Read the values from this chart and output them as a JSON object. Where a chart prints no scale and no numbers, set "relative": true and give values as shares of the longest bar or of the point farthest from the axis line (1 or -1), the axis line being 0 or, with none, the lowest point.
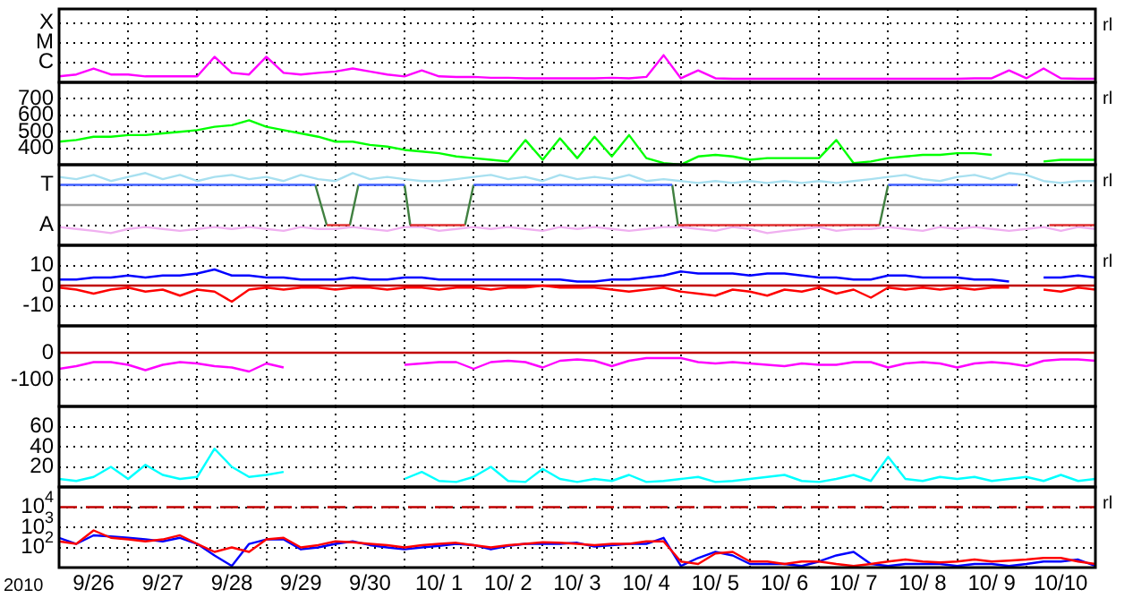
{
  "chart_data": [
    {
      "type": "line",
      "relative": true,
      "grid": true,
      "tick_labels": "y",
      "xlim": [
        "2010-09-26T00:00",
        "2010-10-11T00:00"
      ],
      "xticks": [
        {
          "value": "2010-09-27T00:00",
          "label": null
        },
        {
          "value": "2010-09-28T00:00",
          "label": null
        },
        {
          "value": "2010-09-29T00:00",
          "label": null
        },
        {
          "value": "2010-09-30T00:00",
          "label": null
        },
        {
          "value": "2010-10-01T00:00",
          "label": null
        },
        {
          "value": "2010-10-02T00:00",
          "label": null
        },
        {
          "value": "2010-10-03T00:00",
          "label": null
        },
        {
          "value": "2010-10-04T00:00",
          "label": null
        },
        {
          "value": "2010-10-05T00:00",
          "label": null
        },
        {
          "value": "2010-10-06T00:00",
          "label": null
        },
        {
          "value": "2010-10-07T00:00",
          "label": null
        },
        {
          "value": "2010-10-08T00:00",
          "label": null
        },
        {
          "value": "2010-10-09T00:00",
          "label": null
        },
        {
          "value": "2010-10-10T00:00",
          "label": null
        }
      ],
      "annotations": [
        "rl",
        "X",
        "M",
        "C"
      ],
      "x": [
        "2010-09-26T00:00",
        "2010-09-26T06:00",
        "2010-09-26T12:00",
        "2010-09-26T18:00",
        "2010-09-27T00:00",
        "2010-09-27T06:00",
        "2010-09-27T12:00",
        "2010-09-27T18:00",
        "2010-09-28T00:00",
        "2010-09-28T06:00",
        "2010-09-28T12:00",
        "2010-09-28T18:00",
        "2010-09-29T00:00",
        "2010-09-29T06:00",
        "2010-09-29T12:00",
        "2010-09-29T18:00",
        "2010-09-30T00:00",
        "2010-09-30T06:00",
        "2010-09-30T12:00",
        "2010-09-30T18:00",
        "2010-10-01T00:00",
        "2010-10-01T06:00",
        "2010-10-01T12:00",
        "2010-10-01T18:00",
        "2010-10-02T00:00",
        "2010-10-02T06:00",
        "2010-10-02T12:00",
        "2010-10-02T18:00",
        "2010-10-03T00:00",
        "2010-10-03T06:00",
        "2010-10-03T12:00",
        "2010-10-03T18:00",
        "2010-10-04T00:00",
        "2010-10-04T06:00",
        "2010-10-04T12:00",
        "2010-10-04T18:00",
        "2010-10-05T00:00",
        "2010-10-05T06:00",
        "2010-10-05T12:00",
        "2010-10-05T18:00",
        "2010-10-06T00:00",
        "2010-10-06T06:00",
        "2010-10-06T12:00",
        "2010-10-06T18:00",
        "2010-10-07T00:00",
        "2010-10-07T06:00",
        "2010-10-07T12:00",
        "2010-10-07T18:00",
        "2010-10-08T00:00",
        "2010-10-08T06:00",
        "2010-10-08T12:00",
        "2010-10-08T18:00",
        "2010-10-09T00:00",
        "2010-10-09T06:00",
        "2010-10-09T12:00",
        "2010-10-09T18:00",
        "2010-10-10T00:00",
        "2010-10-10T06:00",
        "2010-10-10T12:00",
        "2010-10-10T18:00",
        "2010-10-11T00:00"
      ],
      "series": [
        {
          "color": "#ff00ff",
          "values": [
            0.22,
            0.29,
            0.51,
            0.29,
            0.29,
            0.22,
            0.22,
            0.22,
            0.22,
            0.94,
            0.35,
            0.29,
            0.94,
            0.35,
            0.29,
            0.35,
            0.4,
            0.51,
            0.4,
            0.29,
            0.22,
            0.44,
            0.22,
            0.2,
            0.2,
            0.17,
            0.17,
            0.15,
            0.15,
            0.15,
            0.15,
            0.15,
            0.17,
            0.15,
            0.2,
            1,
            0.15,
            0.44,
            0.15,
            0.13,
            0.13,
            0.13,
            0.13,
            0.13,
            0.13,
            0.13,
            0.13,
            0.13,
            0.13,
            0.13,
            0.13,
            0.13,
            0.13,
            0.15,
            0.15,
            0.44,
            0.15,
            0.51,
            0.15,
            0.13,
            0.13
          ]
        }
      ]
    },
    {
      "type": "line",
      "grid": true,
      "tick_labels": "y",
      "xlim": [
        "2010-09-26T00:00",
        "2010-10-11T00:00"
      ],
      "ylim": [
        300,
        800
      ],
      "yticks": [
        400,
        500,
        600,
        700
      ],
      "xticks": [
        {
          "value": "2010-09-27T00:00",
          "label": null
        },
        {
          "value": "2010-09-28T00:00",
          "label": null
        },
        {
          "value": "2010-09-29T00:00",
          "label": null
        },
        {
          "value": "2010-09-30T00:00",
          "label": null
        },
        {
          "value": "2010-10-01T00:00",
          "label": null
        },
        {
          "value": "2010-10-02T00:00",
          "label": null
        },
        {
          "value": "2010-10-03T00:00",
          "label": null
        },
        {
          "value": "2010-10-04T00:00",
          "label": null
        },
        {
          "value": "2010-10-05T00:00",
          "label": null
        },
        {
          "value": "2010-10-06T00:00",
          "label": null
        },
        {
          "value": "2010-10-07T00:00",
          "label": null
        },
        {
          "value": "2010-10-08T00:00",
          "label": null
        },
        {
          "value": "2010-10-09T00:00",
          "label": null
        },
        {
          "value": "2010-10-10T00:00",
          "label": null
        }
      ],
      "annotations": [
        "rl"
      ],
      "x": [
        "2010-09-26T00:00",
        "2010-09-26T06:00",
        "2010-09-26T12:00",
        "2010-09-26T18:00",
        "2010-09-27T00:00",
        "2010-09-27T06:00",
        "2010-09-27T12:00",
        "2010-09-27T18:00",
        "2010-09-28T00:00",
        "2010-09-28T06:00",
        "2010-09-28T12:00",
        "2010-09-28T18:00",
        "2010-09-29T00:00",
        "2010-09-29T06:00",
        "2010-09-29T12:00",
        "2010-09-29T18:00",
        "2010-09-30T00:00",
        "2010-09-30T06:00",
        "2010-09-30T12:00",
        "2010-09-30T18:00",
        "2010-10-01T00:00",
        "2010-10-01T06:00",
        "2010-10-01T12:00",
        "2010-10-01T18:00",
        "2010-10-02T00:00",
        "2010-10-02T06:00",
        "2010-10-02T12:00",
        "2010-10-02T18:00",
        "2010-10-03T00:00",
        "2010-10-03T06:00",
        "2010-10-03T12:00",
        "2010-10-03T18:00",
        "2010-10-04T00:00",
        "2010-10-04T06:00",
        "2010-10-04T12:00",
        "2010-10-04T18:00",
        "2010-10-05T00:00",
        "2010-10-05T06:00",
        "2010-10-05T12:00",
        "2010-10-05T18:00",
        "2010-10-06T00:00",
        "2010-10-06T06:00",
        "2010-10-06T12:00",
        "2010-10-06T18:00",
        "2010-10-07T00:00",
        "2010-10-07T06:00",
        "2010-10-07T12:00",
        "2010-10-07T18:00",
        "2010-10-08T00:00",
        "2010-10-08T06:00",
        "2010-10-08T12:00",
        "2010-10-08T18:00",
        "2010-10-09T00:00",
        "2010-10-09T06:00",
        "2010-10-09T12:00",
        "2010-10-09T18:00",
        "2010-10-10T00:00",
        "2010-10-10T06:00",
        "2010-10-10T12:00",
        "2010-10-10T18:00",
        "2010-10-11T00:00"
      ],
      "series": [
        {
          "color": "#00ff00",
          "values": [
            440,
            450,
            470,
            470,
            480,
            480,
            490,
            500,
            510,
            530,
            540,
            570,
            530,
            510,
            490,
            470,
            440,
            440,
            420,
            410,
            390,
            380,
            370,
            350,
            340,
            330,
            320,
            450,
            330,
            460,
            340,
            470,
            350,
            480,
            340,
            310,
            300,
            350,
            360,
            350,
            330,
            340,
            340,
            340,
            340,
            450,
            310,
            320,
            340,
            350,
            360,
            360,
            370,
            370,
            360,
            null,
            null,
            320,
            330,
            330,
            330
          ]
        }
      ]
    },
    {
      "type": "line",
      "relative": true,
      "grid": true,
      "tick_labels": "y",
      "xlim": [
        "2010-09-26T00:00",
        "2010-10-11T00:00"
      ],
      "xticks": [
        {
          "value": "2010-09-27T00:00",
          "label": null
        },
        {
          "value": "2010-09-28T00:00",
          "label": null
        },
        {
          "value": "2010-09-29T00:00",
          "label": null
        },
        {
          "value": "2010-09-30T00:00",
          "label": null
        },
        {
          "value": "2010-10-01T00:00",
          "label": null
        },
        {
          "value": "2010-10-02T00:00",
          "label": null
        },
        {
          "value": "2010-10-03T00:00",
          "label": null
        },
        {
          "value": "2010-10-04T00:00",
          "label": null
        },
        {
          "value": "2010-10-05T00:00",
          "label": null
        },
        {
          "value": "2010-10-06T00:00",
          "label": null
        },
        {
          "value": "2010-10-07T00:00",
          "label": null
        },
        {
          "value": "2010-10-08T00:00",
          "label": null
        },
        {
          "value": "2010-10-09T00:00",
          "label": null
        },
        {
          "value": "2010-10-10T00:00",
          "label": null
        }
      ],
      "annotations": [
        "rl",
        "T",
        "A"
      ],
      "ref_lines": [
        {
          "axis": "y",
          "value": 0,
          "color": "#a0a0a0"
        }
      ],
      "x": [
        "2010-09-26T00:00",
        "2010-09-26T06:00",
        "2010-09-26T12:00",
        "2010-09-26T18:00",
        "2010-09-27T00:00",
        "2010-09-27T06:00",
        "2010-09-27T12:00",
        "2010-09-27T18:00",
        "2010-09-28T00:00",
        "2010-09-28T06:00",
        "2010-09-28T12:00",
        "2010-09-28T18:00",
        "2010-09-29T00:00",
        "2010-09-29T06:00",
        "2010-09-29T12:00",
        "2010-09-29T18:00",
        "2010-09-30T00:00",
        "2010-09-30T06:00",
        "2010-09-30T12:00",
        "2010-09-30T18:00",
        "2010-10-01T00:00",
        "2010-10-01T06:00",
        "2010-10-01T12:00",
        "2010-10-01T18:00",
        "2010-10-02T00:00",
        "2010-10-02T06:00",
        "2010-10-02T12:00",
        "2010-10-02T18:00",
        "2010-10-03T00:00",
        "2010-10-03T06:00",
        "2010-10-03T12:00",
        "2010-10-03T18:00",
        "2010-10-04T00:00",
        "2010-10-04T06:00",
        "2010-10-04T12:00",
        "2010-10-04T18:00",
        "2010-10-05T00:00",
        "2010-10-05T06:00",
        "2010-10-05T12:00",
        "2010-10-05T18:00",
        "2010-10-06T00:00",
        "2010-10-06T06:00",
        "2010-10-06T12:00",
        "2010-10-06T18:00",
        "2010-10-07T00:00",
        "2010-10-07T06:00",
        "2010-10-07T12:00",
        "2010-10-07T18:00",
        "2010-10-08T00:00",
        "2010-10-08T06:00",
        "2010-10-08T12:00",
        "2010-10-08T18:00",
        "2010-10-09T00:00",
        "2010-10-09T06:00",
        "2010-10-09T12:00",
        "2010-10-09T18:00",
        "2010-10-10T00:00",
        "2010-10-10T06:00",
        "2010-10-10T12:00",
        "2010-10-10T18:00",
        "2010-10-11T00:00"
      ],
      "series": [
        {
          "color": "#4060ff",
          "x": [
            "2010-09-26T00:00",
            "2010-09-29T17:00"
          ],
          "values": [
            0.63,
            0.63
          ]
        },
        {
          "color": "#4060ff",
          "x": [
            "2010-09-30T08:00",
            "2010-10-01T00:00"
          ],
          "values": [
            0.63,
            0.63
          ]
        },
        {
          "color": "#4060ff",
          "x": [
            "2010-10-02T00:00",
            "2010-10-04T21:00"
          ],
          "values": [
            0.63,
            0.63
          ]
        },
        {
          "color": "#4060ff",
          "x": [
            "2010-10-08T00:00",
            "2010-10-09T21:00"
          ],
          "values": [
            0.63,
            0.63
          ]
        },
        {
          "color": "#e03030",
          "x": [
            "2010-09-29T21:00",
            "2010-09-30T05:00"
          ],
          "values": [
            -0.63,
            -0.63
          ]
        },
        {
          "color": "#e03030",
          "x": [
            "2010-10-01T02:00",
            "2010-10-01T21:00"
          ],
          "values": [
            -0.63,
            -0.63
          ]
        },
        {
          "color": "#e03030",
          "x": [
            "2010-10-04T23:00",
            "2010-10-07T21:00"
          ],
          "values": [
            -0.63,
            -0.63
          ]
        },
        {
          "color": "#e03030",
          "x": [
            "2010-10-10T08:00",
            "2010-10-11T00:00"
          ],
          "values": [
            -0.63,
            -0.63
          ]
        },
        {
          "color": "#408040",
          "x": [
            "2010-09-29T17:00",
            "2010-09-29T21:00"
          ],
          "values": [
            0.63,
            -0.63
          ]
        },
        {
          "color": "#408040",
          "x": [
            "2010-09-30T05:00",
            "2010-09-30T08:00"
          ],
          "values": [
            -0.63,
            0.63
          ]
        },
        {
          "color": "#408040",
          "x": [
            "2010-10-01T00:00",
            "2010-10-01T02:00"
          ],
          "values": [
            0.63,
            -0.63
          ]
        },
        {
          "color": "#408040",
          "x": [
            "2010-10-01T21:00",
            "2010-10-02T00:00"
          ],
          "values": [
            -0.63,
            0.63
          ]
        },
        {
          "color": "#408040",
          "x": [
            "2010-10-04T21:00",
            "2010-10-04T23:00"
          ],
          "values": [
            0.63,
            -0.63
          ]
        },
        {
          "color": "#408040",
          "x": [
            "2010-10-07T21:00",
            "2010-10-08T00:00"
          ],
          "values": [
            -0.63,
            0.63
          ]
        },
        {
          "color": "#a8e0f0",
          "values": [
            0.88,
            0.81,
            0.94,
            0.75,
            0.88,
            1,
            0.81,
            0.94,
            0.75,
            0.88,
            0.94,
            0.81,
            0.88,
            0.75,
            0.94,
            0.81,
            0.75,
            1,
            0.81,
            0.88,
            0.81,
            0.75,
            0.75,
            0.81,
            0.88,
            0.94,
            0.81,
            0.88,
            0.75,
            0.94,
            0.81,
            0.88,
            0.81,
            0.94,
            0.75,
            0.81,
            0.75,
            0.69,
            0.75,
            0.69,
            0.75,
            0.69,
            0.75,
            0.69,
            0.75,
            0.69,
            0.75,
            0.81,
            0.88,
            0.94,
            0.81,
            0.75,
            0.88,
            0.94,
            0.81,
            1,
            0.94,
            0.75,
            0.69,
            0.75,
            0.75
          ]
        },
        {
          "color": "#f0b0f0",
          "values": [
            -0.69,
            -0.75,
            -0.81,
            -0.88,
            -0.75,
            -0.69,
            -0.75,
            -0.81,
            -0.75,
            -0.69,
            -0.75,
            -0.69,
            -0.75,
            -0.81,
            -0.69,
            -0.75,
            -0.75,
            -0.69,
            -0.75,
            -0.81,
            -0.69,
            -0.69,
            -0.81,
            -0.75,
            -0.69,
            -0.75,
            -0.69,
            -0.75,
            -0.81,
            -0.69,
            -0.75,
            -0.69,
            -0.75,
            -0.81,
            -0.75,
            -0.69,
            -0.69,
            -0.75,
            -0.81,
            -0.69,
            -0.75,
            -0.88,
            -0.81,
            -0.75,
            -0.69,
            -0.81,
            -0.75,
            -0.75,
            -0.69,
            -0.75,
            -0.81,
            -0.69,
            -0.75,
            -0.69,
            -0.75,
            -0.81,
            -0.75,
            -0.69,
            -0.81,
            -0.69,
            -0.75
          ]
        }
      ]
    },
    {
      "type": "line",
      "grid": true,
      "tick_labels": "y",
      "xlim": [
        "2010-09-26T00:00",
        "2010-10-11T00:00"
      ],
      "ylim": [
        -20,
        20
      ],
      "yticks": [
        -10,
        0,
        10
      ],
      "xticks": [
        {
          "value": "2010-09-27T00:00",
          "label": null
        },
        {
          "value": "2010-09-28T00:00",
          "label": null
        },
        {
          "value": "2010-09-29T00:00",
          "label": null
        },
        {
          "value": "2010-09-30T00:00",
          "label": null
        },
        {
          "value": "2010-10-01T00:00",
          "label": null
        },
        {
          "value": "2010-10-02T00:00",
          "label": null
        },
        {
          "value": "2010-10-03T00:00",
          "label": null
        },
        {
          "value": "2010-10-04T00:00",
          "label": null
        },
        {
          "value": "2010-10-05T00:00",
          "label": null
        },
        {
          "value": "2010-10-06T00:00",
          "label": null
        },
        {
          "value": "2010-10-07T00:00",
          "label": null
        },
        {
          "value": "2010-10-08T00:00",
          "label": null
        },
        {
          "value": "2010-10-09T00:00",
          "label": null
        },
        {
          "value": "2010-10-10T00:00",
          "label": null
        }
      ],
      "annotations": [
        "rl"
      ],
      "ref_lines": [
        {
          "axis": "y",
          "value": 0,
          "color": "#c00000"
        }
      ],
      "x": [
        "2010-09-26T00:00",
        "2010-09-26T06:00",
        "2010-09-26T12:00",
        "2010-09-26T18:00",
        "2010-09-27T00:00",
        "2010-09-27T06:00",
        "2010-09-27T12:00",
        "2010-09-27T18:00",
        "2010-09-28T00:00",
        "2010-09-28T06:00",
        "2010-09-28T12:00",
        "2010-09-28T18:00",
        "2010-09-29T00:00",
        "2010-09-29T06:00",
        "2010-09-29T12:00",
        "2010-09-29T18:00",
        "2010-09-30T00:00",
        "2010-09-30T06:00",
        "2010-09-30T12:00",
        "2010-09-30T18:00",
        "2010-10-01T00:00",
        "2010-10-01T06:00",
        "2010-10-01T12:00",
        "2010-10-01T18:00",
        "2010-10-02T00:00",
        "2010-10-02T06:00",
        "2010-10-02T12:00",
        "2010-10-02T18:00",
        "2010-10-03T00:00",
        "2010-10-03T06:00",
        "2010-10-03T12:00",
        "2010-10-03T18:00",
        "2010-10-04T00:00",
        "2010-10-04T06:00",
        "2010-10-04T12:00",
        "2010-10-04T18:00",
        "2010-10-05T00:00",
        "2010-10-05T06:00",
        "2010-10-05T12:00",
        "2010-10-05T18:00",
        "2010-10-06T00:00",
        "2010-10-06T06:00",
        "2010-10-06T12:00",
        "2010-10-06T18:00",
        "2010-10-07T00:00",
        "2010-10-07T06:00",
        "2010-10-07T12:00",
        "2010-10-07T18:00",
        "2010-10-08T00:00",
        "2010-10-08T06:00",
        "2010-10-08T12:00",
        "2010-10-08T18:00",
        "2010-10-09T00:00",
        "2010-10-09T06:00",
        "2010-10-09T12:00",
        "2010-10-09T18:00",
        "2010-10-10T00:00",
        "2010-10-10T06:00",
        "2010-10-10T12:00",
        "2010-10-10T18:00",
        "2010-10-11T00:00"
      ],
      "series": [
        {
          "color": "#0000ff",
          "values": [
            3,
            3,
            4,
            4,
            5,
            4,
            5,
            5,
            6,
            8,
            5,
            5,
            4,
            4,
            3,
            3,
            3,
            4,
            3,
            3,
            4,
            4,
            3,
            3,
            3,
            3,
            3,
            3,
            3,
            3,
            2,
            2,
            3,
            3,
            4,
            5,
            7,
            6,
            6,
            6,
            5,
            6,
            6,
            5,
            4,
            4,
            3,
            3,
            5,
            5,
            4,
            4,
            4,
            3,
            3,
            2,
            null,
            4,
            4,
            5,
            4
          ]
        },
        {
          "color": "#ff0000",
          "values": [
            -1,
            -2,
            -4,
            -2,
            -1,
            -3,
            -2,
            -5,
            -2,
            -3,
            -8,
            -2,
            -1,
            -2,
            -1,
            -1,
            -2,
            -1,
            -1,
            -2,
            -1,
            -1,
            -2,
            -1,
            -1,
            -2,
            -1,
            -1,
            0,
            -1,
            -1,
            -1,
            -2,
            -3,
            -2,
            -1,
            -3,
            -4,
            -5,
            -2,
            -3,
            -5,
            -2,
            -3,
            -1,
            -4,
            -2,
            -6,
            -1,
            -2,
            -1,
            -2,
            -1,
            -2,
            -1,
            -1,
            null,
            -2,
            -3,
            -1,
            -2
          ]
        }
      ]
    },
    {
      "type": "line",
      "grid": true,
      "tick_labels": "y",
      "xlim": [
        "2010-09-26T00:00",
        "2010-10-11T00:00"
      ],
      "ylim": [
        -200,
        100
      ],
      "yticks": [
        -100,
        0
      ],
      "xticks": [
        {
          "value": "2010-09-27T00:00",
          "label": null
        },
        {
          "value": "2010-09-28T00:00",
          "label": null
        },
        {
          "value": "2010-09-29T00:00",
          "label": null
        },
        {
          "value": "2010-09-30T00:00",
          "label": null
        },
        {
          "value": "2010-10-01T00:00",
          "label": null
        },
        {
          "value": "2010-10-02T00:00",
          "label": null
        },
        {
          "value": "2010-10-03T00:00",
          "label": null
        },
        {
          "value": "2010-10-04T00:00",
          "label": null
        },
        {
          "value": "2010-10-05T00:00",
          "label": null
        },
        {
          "value": "2010-10-06T00:00",
          "label": null
        },
        {
          "value": "2010-10-07T00:00",
          "label": null
        },
        {
          "value": "2010-10-08T00:00",
          "label": null
        },
        {
          "value": "2010-10-09T00:00",
          "label": null
        },
        {
          "value": "2010-10-10T00:00",
          "label": null
        }
      ],
      "ref_lines": [
        {
          "axis": "y",
          "value": 0,
          "color": "#c00000"
        }
      ],
      "x": [
        "2010-09-26T00:00",
        "2010-09-26T06:00",
        "2010-09-26T12:00",
        "2010-09-26T18:00",
        "2010-09-27T00:00",
        "2010-09-27T06:00",
        "2010-09-27T12:00",
        "2010-09-27T18:00",
        "2010-09-28T00:00",
        "2010-09-28T06:00",
        "2010-09-28T12:00",
        "2010-09-28T18:00",
        "2010-09-29T00:00",
        "2010-09-29T06:00",
        "2010-09-29T12:00",
        "2010-09-29T18:00",
        "2010-09-30T00:00",
        "2010-09-30T06:00",
        "2010-09-30T12:00",
        "2010-09-30T18:00",
        "2010-10-01T00:00",
        "2010-10-01T06:00",
        "2010-10-01T12:00",
        "2010-10-01T18:00",
        "2010-10-02T00:00",
        "2010-10-02T06:00",
        "2010-10-02T12:00",
        "2010-10-02T18:00",
        "2010-10-03T00:00",
        "2010-10-03T06:00",
        "2010-10-03T12:00",
        "2010-10-03T18:00",
        "2010-10-04T00:00",
        "2010-10-04T06:00",
        "2010-10-04T12:00",
        "2010-10-04T18:00",
        "2010-10-05T00:00",
        "2010-10-05T06:00",
        "2010-10-05T12:00",
        "2010-10-05T18:00",
        "2010-10-06T00:00",
        "2010-10-06T06:00",
        "2010-10-06T12:00",
        "2010-10-06T18:00",
        "2010-10-07T00:00",
        "2010-10-07T06:00",
        "2010-10-07T12:00",
        "2010-10-07T18:00",
        "2010-10-08T00:00",
        "2010-10-08T06:00",
        "2010-10-08T12:00",
        "2010-10-08T18:00",
        "2010-10-09T00:00",
        "2010-10-09T06:00",
        "2010-10-09T12:00",
        "2010-10-09T18:00",
        "2010-10-10T00:00",
        "2010-10-10T06:00",
        "2010-10-10T12:00",
        "2010-10-10T18:00",
        "2010-10-11T00:00"
      ],
      "series": [
        {
          "color": "#ff00ff",
          "values": [
            -60,
            -50,
            -35,
            -35,
            -45,
            -65,
            -45,
            -35,
            -40,
            -50,
            -55,
            -70,
            -40,
            -55,
            null,
            null,
            null,
            null,
            null,
            null,
            -45,
            -40,
            -35,
            -35,
            -60,
            -35,
            -30,
            -35,
            -55,
            -30,
            -25,
            -30,
            -50,
            -30,
            -20,
            -20,
            -20,
            -35,
            -40,
            -35,
            -40,
            -45,
            -50,
            -40,
            -45,
            -45,
            -35,
            -35,
            -55,
            -40,
            -35,
            -40,
            -55,
            -40,
            -35,
            -40,
            -50,
            -30,
            -25,
            -25,
            -30
          ]
        }
      ]
    },
    {
      "type": "line",
      "grid": true,
      "tick_labels": "y",
      "xlim": [
        "2010-09-26T00:00",
        "2010-10-11T00:00"
      ],
      "ylim": [
        0,
        80
      ],
      "yticks": [
        20,
        40,
        60
      ],
      "xticks": [
        {
          "value": "2010-09-27T00:00",
          "label": null
        },
        {
          "value": "2010-09-28T00:00",
          "label": null
        },
        {
          "value": "2010-09-29T00:00",
          "label": null
        },
        {
          "value": "2010-09-30T00:00",
          "label": null
        },
        {
          "value": "2010-10-01T00:00",
          "label": null
        },
        {
          "value": "2010-10-02T00:00",
          "label": null
        },
        {
          "value": "2010-10-03T00:00",
          "label": null
        },
        {
          "value": "2010-10-04T00:00",
          "label": null
        },
        {
          "value": "2010-10-05T00:00",
          "label": null
        },
        {
          "value": "2010-10-06T00:00",
          "label": null
        },
        {
          "value": "2010-10-07T00:00",
          "label": null
        },
        {
          "value": "2010-10-08T00:00",
          "label": null
        },
        {
          "value": "2010-10-09T00:00",
          "label": null
        },
        {
          "value": "2010-10-10T00:00",
          "label": null
        }
      ],
      "x": [
        "2010-09-26T00:00",
        "2010-09-26T06:00",
        "2010-09-26T12:00",
        "2010-09-26T18:00",
        "2010-09-27T00:00",
        "2010-09-27T06:00",
        "2010-09-27T12:00",
        "2010-09-27T18:00",
        "2010-09-28T00:00",
        "2010-09-28T06:00",
        "2010-09-28T12:00",
        "2010-09-28T18:00",
        "2010-09-29T00:00",
        "2010-09-29T06:00",
        "2010-09-29T12:00",
        "2010-09-29T18:00",
        "2010-09-30T00:00",
        "2010-09-30T06:00",
        "2010-09-30T12:00",
        "2010-09-30T18:00",
        "2010-10-01T00:00",
        "2010-10-01T06:00",
        "2010-10-01T12:00",
        "2010-10-01T18:00",
        "2010-10-02T00:00",
        "2010-10-02T06:00",
        "2010-10-02T12:00",
        "2010-10-02T18:00",
        "2010-10-03T00:00",
        "2010-10-03T06:00",
        "2010-10-03T12:00",
        "2010-10-03T18:00",
        "2010-10-04T00:00",
        "2010-10-04T06:00",
        "2010-10-04T12:00",
        "2010-10-04T18:00",
        "2010-10-05T00:00",
        "2010-10-05T06:00",
        "2010-10-05T12:00",
        "2010-10-05T18:00",
        "2010-10-06T00:00",
        "2010-10-06T06:00",
        "2010-10-06T12:00",
        "2010-10-06T18:00",
        "2010-10-07T00:00",
        "2010-10-07T06:00",
        "2010-10-07T12:00",
        "2010-10-07T18:00",
        "2010-10-08T00:00",
        "2010-10-08T06:00",
        "2010-10-08T12:00",
        "2010-10-08T18:00",
        "2010-10-09T00:00",
        "2010-10-09T06:00",
        "2010-10-09T12:00",
        "2010-10-09T18:00",
        "2010-10-10T00:00",
        "2010-10-10T06:00",
        "2010-10-10T12:00",
        "2010-10-10T18:00",
        "2010-10-11T00:00"
      ],
      "series": [
        {
          "color": "#00ffff",
          "values": [
            8,
            6,
            10,
            20,
            8,
            22,
            12,
            8,
            10,
            38,
            20,
            10,
            12,
            15,
            null,
            null,
            null,
            null,
            null,
            null,
            8,
            15,
            6,
            5,
            10,
            20,
            6,
            5,
            18,
            8,
            5,
            8,
            6,
            12,
            5,
            6,
            8,
            10,
            5,
            6,
            8,
            10,
            12,
            6,
            5,
            8,
            12,
            6,
            30,
            8,
            6,
            10,
            8,
            10,
            6,
            8,
            10,
            6,
            12,
            6,
            8
          ]
        }
      ]
    },
    {
      "type": "line",
      "log": true,
      "grid": true,
      "xlim": [
        "2010-09-26T00:00",
        "2010-10-11T00:00"
      ],
      "ylim": [
        10,
        100000
      ],
      "yticks": [
        {
          "value": 100,
          "label": "10$^{2}$"
        },
        {
          "value": 1000,
          "label": "10$^{3}$"
        },
        {
          "value": 10000,
          "label": "10$^{4}$"
        }
      ],
      "xticks": [
        {
          "value": "2010-09-26T12:00",
          "label": "9/26"
        },
        {
          "value": "2010-09-27T00:00",
          "label": null
        },
        {
          "value": "2010-09-27T12:00",
          "label": "9/27"
        },
        {
          "value": "2010-09-28T00:00",
          "label": null
        },
        {
          "value": "2010-09-28T12:00",
          "label": "9/28"
        },
        {
          "value": "2010-09-29T00:00",
          "label": null
        },
        {
          "value": "2010-09-29T12:00",
          "label": "9/29"
        },
        {
          "value": "2010-09-30T00:00",
          "label": null
        },
        {
          "value": "2010-09-30T12:00",
          "label": "9/30"
        },
        {
          "value": "2010-10-01T00:00",
          "label": null
        },
        {
          "value": "2010-10-01T12:00",
          "label": "10/ 1"
        },
        {
          "value": "2010-10-02T00:00",
          "label": null
        },
        {
          "value": "2010-10-02T12:00",
          "label": "10/ 2"
        },
        {
          "value": "2010-10-03T00:00",
          "label": null
        },
        {
          "value": "2010-10-03T12:00",
          "label": "10/ 3"
        },
        {
          "value": "2010-10-04T00:00",
          "label": null
        },
        {
          "value": "2010-10-04T12:00",
          "label": "10/ 4"
        },
        {
          "value": "2010-10-05T00:00",
          "label": null
        },
        {
          "value": "2010-10-05T12:00",
          "label": "10/ 5"
        },
        {
          "value": "2010-10-06T00:00",
          "label": null
        },
        {
          "value": "2010-10-06T12:00",
          "label": "10/ 6"
        },
        {
          "value": "2010-10-07T00:00",
          "label": null
        },
        {
          "value": "2010-10-07T12:00",
          "label": "10/ 7"
        },
        {
          "value": "2010-10-08T00:00",
          "label": null
        },
        {
          "value": "2010-10-08T12:00",
          "label": "10/ 8"
        },
        {
          "value": "2010-10-09T00:00",
          "label": null
        },
        {
          "value": "2010-10-09T12:00",
          "label": "10/ 9"
        },
        {
          "value": "2010-10-10T00:00",
          "label": null
        },
        {
          "value": "2010-10-10T12:00",
          "label": "10/10"
        }
      ],
      "annotations": [
        "rl",
        "2010"
      ],
      "ref_lines": [
        {
          "axis": "y",
          "value": 10000,
          "color": "#c00000",
          "line_style": "dashed"
        }
      ],
      "x": [
        "2010-09-26T00:00",
        "2010-09-26T06:00",
        "2010-09-26T12:00",
        "2010-09-26T18:00",
        "2010-09-27T00:00",
        "2010-09-27T06:00",
        "2010-09-27T12:00",
        "2010-09-27T18:00",
        "2010-09-28T00:00",
        "2010-09-28T06:00",
        "2010-09-28T12:00",
        "2010-09-28T18:00",
        "2010-09-29T00:00",
        "2010-09-29T06:00",
        "2010-09-29T12:00",
        "2010-09-29T18:00",
        "2010-09-30T00:00",
        "2010-09-30T06:00",
        "2010-09-30T12:00",
        "2010-09-30T18:00",
        "2010-10-01T00:00",
        "2010-10-01T06:00",
        "2010-10-01T12:00",
        "2010-10-01T18:00",
        "2010-10-02T00:00",
        "2010-10-02T06:00",
        "2010-10-02T12:00",
        "2010-10-02T18:00",
        "2010-10-03T00:00",
        "2010-10-03T06:00",
        "2010-10-03T12:00",
        "2010-10-03T18:00",
        "2010-10-04T00:00",
        "2010-10-04T06:00",
        "2010-10-04T12:00",
        "2010-10-04T18:00",
        "2010-10-05T00:00",
        "2010-10-05T06:00",
        "2010-10-05T12:00",
        "2010-10-05T18:00",
        "2010-10-06T00:00",
        "2010-10-06T06:00",
        "2010-10-06T12:00",
        "2010-10-06T18:00",
        "2010-10-07T00:00",
        "2010-10-07T06:00",
        "2010-10-07T12:00",
        "2010-10-07T18:00",
        "2010-10-08T00:00",
        "2010-10-08T06:00",
        "2010-10-08T12:00",
        "2010-10-08T18:00",
        "2010-10-09T00:00",
        "2010-10-09T06:00",
        "2010-10-09T12:00",
        "2010-10-09T18:00",
        "2010-10-10T00:00",
        "2010-10-10T06:00",
        "2010-10-10T12:00",
        "2010-10-10T18:00",
        "2010-10-11T00:00"
      ],
      "series": [
        {
          "color": "#ff0000",
          "values": [
            200,
            150,
            700,
            300,
            250,
            200,
            250,
            400,
            150,
            60,
            100,
            60,
            250,
            300,
            100,
            130,
            200,
            180,
            150,
            130,
            100,
            130,
            150,
            170,
            130,
            100,
            130,
            150,
            180,
            170,
            150,
            130,
            150,
            150,
            200,
            200,
            20,
            15,
            50,
            60,
            20,
            20,
            15,
            20,
            20,
            15,
            12,
            15,
            20,
            25,
            20,
            18,
            20,
            25,
            20,
            22,
            25,
            30,
            30,
            20,
            15
          ]
        },
        {
          "color": "#0000ff",
          "values": [
            300,
            150,
            400,
            350,
            300,
            250,
            200,
            300,
            150,
            40,
            12,
            150,
            250,
            250,
            80,
            100,
            150,
            200,
            130,
            100,
            80,
            100,
            120,
            150,
            130,
            80,
            120,
            150,
            150,
            150,
            170,
            110,
            130,
            150,
            150,
            300,
            12,
            30,
            60,
            40,
            15,
            15,
            15,
            12,
            20,
            40,
            60,
            15,
            12,
            15,
            15,
            15,
            12,
            15,
            15,
            12,
            15,
            20,
            20,
            25,
            12
          ]
        }
      ]
    }
  ]
}
